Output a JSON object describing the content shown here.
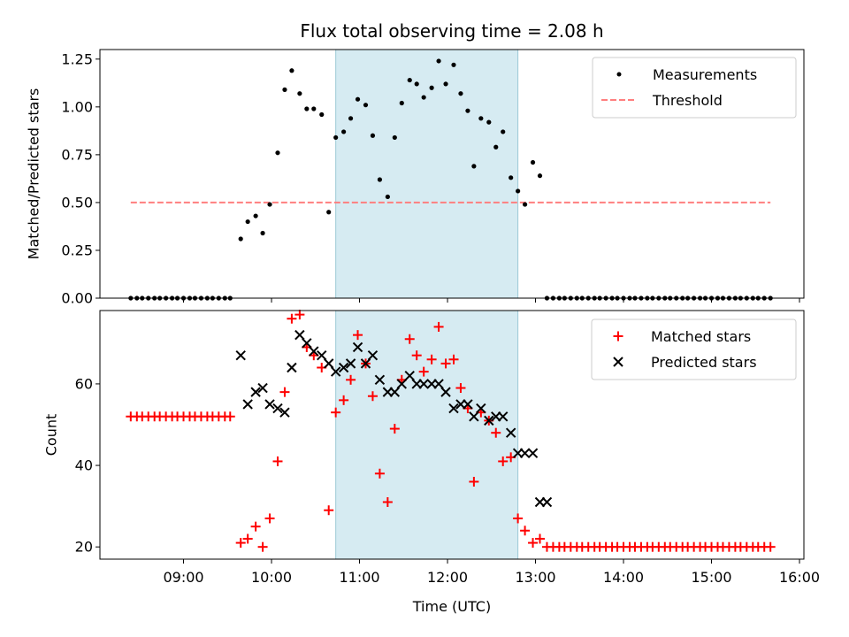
{
  "chart_data": [
    {
      "type": "scatter",
      "title": "Flux total observing time = 2.08 h",
      "xlabel": "",
      "ylabel": "Matched/Predicted stars",
      "ylim": [
        0,
        1.3
      ],
      "yticks": [
        "0.00",
        "0.25",
        "0.50",
        "0.75",
        "1.00",
        "1.25"
      ],
      "ytick_values": [
        0,
        0.25,
        0.5,
        0.75,
        1.0,
        1.25
      ],
      "x_range_hours": [
        8.05,
        16.05
      ],
      "shaded_span_hours": [
        10.73,
        12.8
      ],
      "shaded_color": "#add8e6",
      "legend_position": "top-right",
      "series": [
        {
          "name": "Measurements",
          "marker": "dot",
          "color": "#000000",
          "points": [
            [
              8.4,
              0
            ],
            [
              8.47,
              0
            ],
            [
              8.53,
              0
            ],
            [
              8.6,
              0
            ],
            [
              8.67,
              0
            ],
            [
              8.73,
              0
            ],
            [
              8.8,
              0
            ],
            [
              8.87,
              0
            ],
            [
              8.93,
              0
            ],
            [
              9.0,
              0
            ],
            [
              9.07,
              0
            ],
            [
              9.13,
              0
            ],
            [
              9.2,
              0
            ],
            [
              9.27,
              0
            ],
            [
              9.33,
              0
            ],
            [
              9.4,
              0
            ],
            [
              9.47,
              0
            ],
            [
              9.53,
              0
            ],
            [
              9.65,
              0.31
            ],
            [
              9.73,
              0.4
            ],
            [
              9.82,
              0.43
            ],
            [
              9.9,
              0.34
            ],
            [
              9.98,
              0.49
            ],
            [
              10.07,
              0.76
            ],
            [
              10.15,
              1.09
            ],
            [
              10.23,
              1.19
            ],
            [
              10.32,
              1.07
            ],
            [
              10.4,
              0.99
            ],
            [
              10.48,
              0.99
            ],
            [
              10.57,
              0.96
            ],
            [
              10.65,
              0.45
            ],
            [
              10.73,
              0.84
            ],
            [
              10.82,
              0.87
            ],
            [
              10.9,
              0.94
            ],
            [
              10.98,
              1.04
            ],
            [
              11.07,
              1.01
            ],
            [
              11.15,
              0.85
            ],
            [
              11.23,
              0.62
            ],
            [
              11.32,
              0.53
            ],
            [
              11.4,
              0.84
            ],
            [
              11.48,
              1.02
            ],
            [
              11.57,
              1.14
            ],
            [
              11.65,
              1.12
            ],
            [
              11.73,
              1.05
            ],
            [
              11.82,
              1.1
            ],
            [
              11.9,
              1.24
            ],
            [
              11.98,
              1.12
            ],
            [
              12.07,
              1.22
            ],
            [
              12.15,
              1.07
            ],
            [
              12.23,
              0.98
            ],
            [
              12.3,
              0.69
            ],
            [
              12.38,
              0.94
            ],
            [
              12.47,
              0.92
            ],
            [
              12.55,
              0.79
            ],
            [
              12.63,
              0.87
            ],
            [
              12.72,
              0.63
            ],
            [
              12.8,
              0.56
            ],
            [
              12.88,
              0.49
            ],
            [
              12.97,
              0.71
            ],
            [
              13.05,
              0.64
            ],
            [
              13.13,
              0
            ],
            [
              13.2,
              0
            ],
            [
              13.27,
              0
            ],
            [
              13.33,
              0
            ],
            [
              13.4,
              0
            ],
            [
              13.47,
              0
            ],
            [
              13.53,
              0
            ],
            [
              13.6,
              0
            ],
            [
              13.67,
              0
            ],
            [
              13.73,
              0
            ],
            [
              13.8,
              0
            ],
            [
              13.87,
              0
            ],
            [
              13.93,
              0
            ],
            [
              14.0,
              0
            ],
            [
              14.07,
              0
            ],
            [
              14.13,
              0
            ],
            [
              14.2,
              0
            ],
            [
              14.27,
              0
            ],
            [
              14.33,
              0
            ],
            [
              14.4,
              0
            ],
            [
              14.47,
              0
            ],
            [
              14.53,
              0
            ],
            [
              14.6,
              0
            ],
            [
              14.67,
              0
            ],
            [
              14.73,
              0
            ],
            [
              14.8,
              0
            ],
            [
              14.87,
              0
            ],
            [
              14.93,
              0
            ],
            [
              15.0,
              0
            ],
            [
              15.07,
              0
            ],
            [
              15.13,
              0
            ],
            [
              15.2,
              0
            ],
            [
              15.27,
              0
            ],
            [
              15.33,
              0
            ],
            [
              15.4,
              0
            ],
            [
              15.47,
              0
            ],
            [
              15.53,
              0
            ],
            [
              15.6,
              0
            ],
            [
              15.67,
              0
            ]
          ]
        },
        {
          "name": "Threshold",
          "marker": "dashed-line",
          "color": "#ff7f7f",
          "points": [
            [
              8.4,
              0.5
            ],
            [
              15.67,
              0.5
            ]
          ]
        }
      ]
    },
    {
      "type": "scatter",
      "title": "",
      "xlabel": "Time (UTC)",
      "ylabel": "Count",
      "ylim": [
        17,
        78
      ],
      "yticks": [
        "20",
        "40",
        "60"
      ],
      "ytick_values": [
        20,
        40,
        60
      ],
      "xticks": [
        "09:00",
        "10:00",
        "11:00",
        "12:00",
        "13:00",
        "14:00",
        "15:00",
        "16:00"
      ],
      "xtick_values": [
        9,
        10,
        11,
        12,
        13,
        14,
        15,
        16
      ],
      "x_range_hours": [
        8.05,
        16.05
      ],
      "shaded_span_hours": [
        10.73,
        12.8
      ],
      "shaded_color": "#add8e6",
      "legend_position": "top-right",
      "series": [
        {
          "name": "Matched stars",
          "marker": "plus",
          "color": "#ff0000",
          "points": [
            [
              8.4,
              52
            ],
            [
              8.47,
              52
            ],
            [
              8.53,
              52
            ],
            [
              8.6,
              52
            ],
            [
              8.67,
              52
            ],
            [
              8.73,
              52
            ],
            [
              8.8,
              52
            ],
            [
              8.87,
              52
            ],
            [
              8.93,
              52
            ],
            [
              9.0,
              52
            ],
            [
              9.07,
              52
            ],
            [
              9.13,
              52
            ],
            [
              9.2,
              52
            ],
            [
              9.27,
              52
            ],
            [
              9.33,
              52
            ],
            [
              9.4,
              52
            ],
            [
              9.47,
              52
            ],
            [
              9.53,
              52
            ],
            [
              9.65,
              21
            ],
            [
              9.73,
              22
            ],
            [
              9.82,
              25
            ],
            [
              9.9,
              20
            ],
            [
              9.98,
              27
            ],
            [
              10.07,
              41
            ],
            [
              10.15,
              58
            ],
            [
              10.23,
              76
            ],
            [
              10.32,
              77
            ],
            [
              10.4,
              69
            ],
            [
              10.48,
              67
            ],
            [
              10.57,
              64
            ],
            [
              10.65,
              29
            ],
            [
              10.73,
              53
            ],
            [
              10.82,
              56
            ],
            [
              10.9,
              61
            ],
            [
              10.98,
              72
            ],
            [
              11.07,
              65
            ],
            [
              11.15,
              57
            ],
            [
              11.23,
              38
            ],
            [
              11.32,
              31
            ],
            [
              11.4,
              49
            ],
            [
              11.48,
              61
            ],
            [
              11.57,
              71
            ],
            [
              11.65,
              67
            ],
            [
              11.73,
              63
            ],
            [
              11.82,
              66
            ],
            [
              11.9,
              74
            ],
            [
              11.98,
              65
            ],
            [
              12.07,
              66
            ],
            [
              12.15,
              59
            ],
            [
              12.23,
              54
            ],
            [
              12.3,
              36
            ],
            [
              12.38,
              53
            ],
            [
              12.47,
              51
            ],
            [
              12.55,
              48
            ],
            [
              12.63,
              41
            ],
            [
              12.72,
              42
            ],
            [
              12.8,
              27
            ],
            [
              12.88,
              24
            ],
            [
              12.97,
              21
            ],
            [
              13.05,
              22
            ],
            [
              13.13,
              20
            ],
            [
              13.2,
              20
            ],
            [
              13.27,
              20
            ],
            [
              13.33,
              20
            ],
            [
              13.4,
              20
            ],
            [
              13.47,
              20
            ],
            [
              13.53,
              20
            ],
            [
              13.6,
              20
            ],
            [
              13.67,
              20
            ],
            [
              13.73,
              20
            ],
            [
              13.8,
              20
            ],
            [
              13.87,
              20
            ],
            [
              13.93,
              20
            ],
            [
              14.0,
              20
            ],
            [
              14.07,
              20
            ],
            [
              14.13,
              20
            ],
            [
              14.2,
              20
            ],
            [
              14.27,
              20
            ],
            [
              14.33,
              20
            ],
            [
              14.4,
              20
            ],
            [
              14.47,
              20
            ],
            [
              14.53,
              20
            ],
            [
              14.6,
              20
            ],
            [
              14.67,
              20
            ],
            [
              14.73,
              20
            ],
            [
              14.8,
              20
            ],
            [
              14.87,
              20
            ],
            [
              14.93,
              20
            ],
            [
              15.0,
              20
            ],
            [
              15.07,
              20
            ],
            [
              15.13,
              20
            ],
            [
              15.2,
              20
            ],
            [
              15.27,
              20
            ],
            [
              15.33,
              20
            ],
            [
              15.4,
              20
            ],
            [
              15.47,
              20
            ],
            [
              15.53,
              20
            ],
            [
              15.6,
              20
            ],
            [
              15.67,
              20
            ]
          ]
        },
        {
          "name": "Predicted stars",
          "marker": "x",
          "color": "#000000",
          "points": [
            [
              9.65,
              67
            ],
            [
              9.73,
              55
            ],
            [
              9.82,
              58
            ],
            [
              9.9,
              59
            ],
            [
              9.98,
              55
            ],
            [
              10.07,
              54
            ],
            [
              10.15,
              53
            ],
            [
              10.23,
              64
            ],
            [
              10.32,
              72
            ],
            [
              10.4,
              70
            ],
            [
              10.48,
              68
            ],
            [
              10.57,
              67
            ],
            [
              10.65,
              65
            ],
            [
              10.73,
              63
            ],
            [
              10.82,
              64
            ],
            [
              10.9,
              65
            ],
            [
              10.98,
              69
            ],
            [
              11.07,
              65
            ],
            [
              11.15,
              67
            ],
            [
              11.23,
              61
            ],
            [
              11.32,
              58
            ],
            [
              11.4,
              58
            ],
            [
              11.48,
              60
            ],
            [
              11.57,
              62
            ],
            [
              11.65,
              60
            ],
            [
              11.73,
              60
            ],
            [
              11.82,
              60
            ],
            [
              11.9,
              60
            ],
            [
              11.98,
              58
            ],
            [
              12.07,
              54
            ],
            [
              12.15,
              55
            ],
            [
              12.23,
              55
            ],
            [
              12.3,
              52
            ],
            [
              12.38,
              54
            ],
            [
              12.47,
              51
            ],
            [
              12.55,
              52
            ],
            [
              12.63,
              52
            ],
            [
              12.72,
              48
            ],
            [
              12.8,
              43
            ],
            [
              12.88,
              43
            ],
            [
              12.97,
              43
            ],
            [
              13.05,
              31
            ],
            [
              13.13,
              31
            ]
          ]
        }
      ]
    }
  ]
}
